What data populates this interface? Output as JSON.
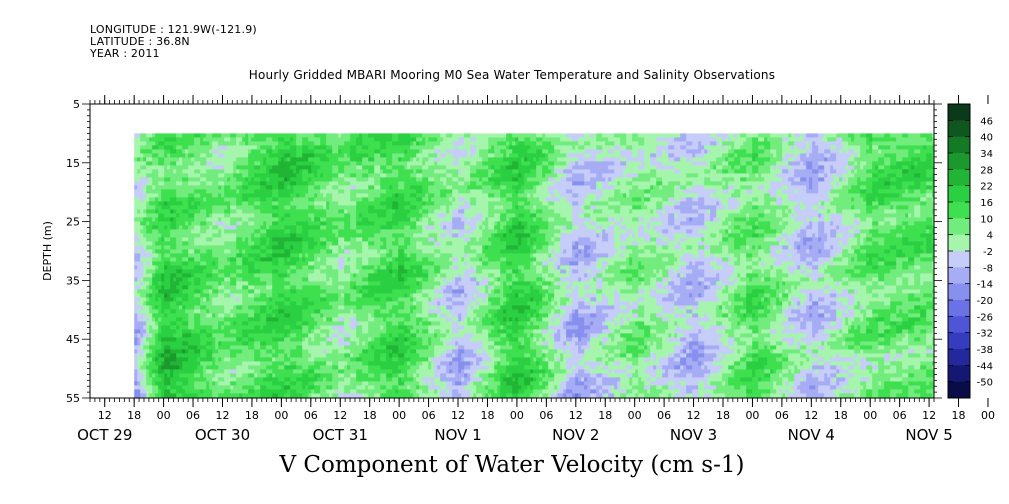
{
  "header": {
    "longitude": "LONGITUDE : 121.9W(-121.9)",
    "latitude": "LATITUDE : 36.8N",
    "year": "YEAR : 2011"
  },
  "chart_data": {
    "type": "heatmap",
    "title": "Hourly Gridded MBARI Mooring M0 Sea Water Temperature and Salinity Observations",
    "xlabel": "V Component of Water Velocity (cm s-1)",
    "ylabel": "DEPTH (m)",
    "y_ticks": [
      "5",
      "15",
      "25",
      "35",
      "45",
      "55"
    ],
    "ylim": [
      55,
      5
    ],
    "x_hour_ticks": [
      "12",
      "18",
      "00",
      "06",
      "12",
      "18",
      "00",
      "06",
      "12",
      "18",
      "00",
      "06",
      "12",
      "18",
      "00",
      "06",
      "12",
      "18",
      "00",
      "06",
      "12",
      "18",
      "00",
      "06",
      "12",
      "18",
      "00",
      "06",
      "12",
      "18",
      "00",
      "06",
      "12",
      "18",
      "00",
      "06"
    ],
    "x_date_labels": [
      "OCT 29",
      "OCT 30",
      "OCT 31",
      "NOV  1",
      "NOV  2",
      "NOV  3",
      "NOV  4",
      "NOV  5"
    ],
    "xlim": [
      "2011-10-29T09:00",
      "2011-11-05T13:00"
    ],
    "data_start": "2011-10-29T18:00",
    "data_depth_range": [
      10,
      55
    ],
    "colorbar": {
      "levels": [
        "46",
        "40",
        "34",
        "28",
        "22",
        "16",
        "10",
        "4",
        "-2",
        "-8",
        "-14",
        "-20",
        "-26",
        "-32",
        "-38",
        "-44",
        "-50"
      ],
      "colors": [
        "#0a3a1a",
        "#10561f",
        "#157a25",
        "#1b992d",
        "#22b535",
        "#2ad042",
        "#3ee050",
        "#72ec7c",
        "#a6f5ad",
        "#c6cdf8",
        "#a6adf4",
        "#878fef",
        "#6a72e6",
        "#4e55d6",
        "#353cbd",
        "#23289c",
        "#141873",
        "#0a0c48"
      ],
      "range": [
        -50,
        52
      ]
    },
    "v_component_bands": [
      {
        "day": "2011-10-29T18:00",
        "surface": 4,
        "bottom": -8
      },
      {
        "day": "2011-10-30T00:00",
        "surface": 12,
        "bottom": 28
      },
      {
        "day": "2011-10-30T12:00",
        "surface": 6,
        "bottom": 10
      },
      {
        "day": "2011-10-31T00:00",
        "surface": 22,
        "bottom": 16
      },
      {
        "day": "2011-10-31T12:00",
        "surface": 10,
        "bottom": 4
      },
      {
        "day": "2011-11-01T00:00",
        "surface": 16,
        "bottom": 20
      },
      {
        "day": "2011-11-01T12:00",
        "surface": 4,
        "bottom": -8
      },
      {
        "day": "2011-11-02T00:00",
        "surface": 18,
        "bottom": 22
      },
      {
        "day": "2011-11-02T12:00",
        "surface": -2,
        "bottom": -8
      },
      {
        "day": "2011-11-03T00:00",
        "surface": 6,
        "bottom": 10
      },
      {
        "day": "2011-11-03T12:00",
        "surface": 0,
        "bottom": -8
      },
      {
        "day": "2011-11-04T00:00",
        "surface": 10,
        "bottom": 16
      },
      {
        "day": "2011-11-04T12:00",
        "surface": -8,
        "bottom": -2
      },
      {
        "day": "2011-11-05T00:00",
        "surface": 16,
        "bottom": 8
      }
    ],
    "grid": false,
    "legend_position": "right"
  }
}
